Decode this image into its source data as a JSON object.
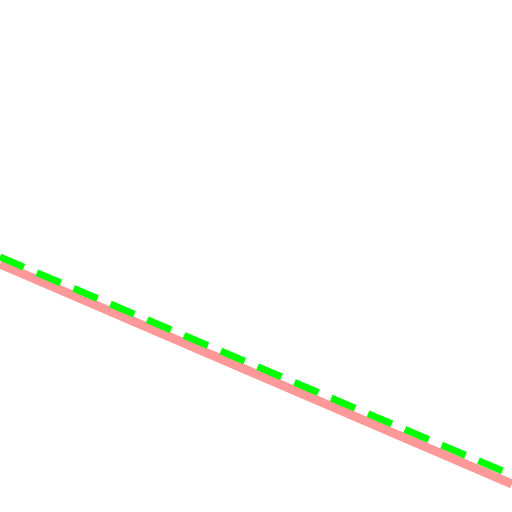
{
  "colors": {
    "background": "#ffffff",
    "solid_line": "#ff9999",
    "dashed_line": "#00ff00"
  },
  "lines": {
    "solid": {
      "style": "solid"
    },
    "dashed": {
      "style": "dashed"
    }
  }
}
